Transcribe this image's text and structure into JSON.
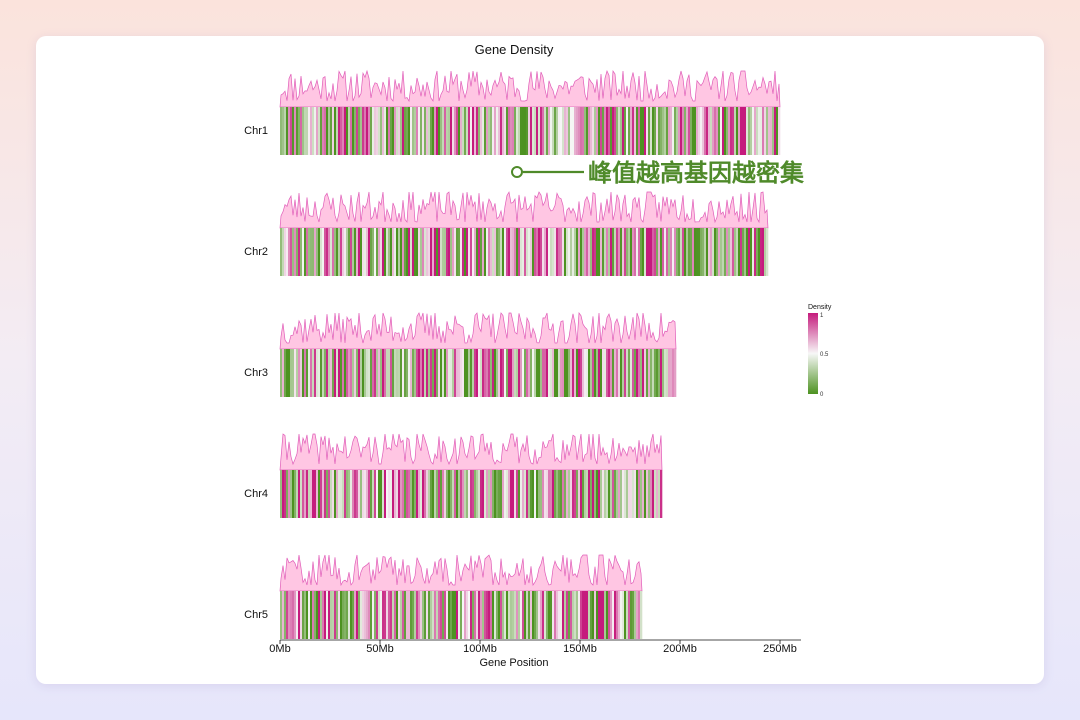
{
  "chart_data": {
    "type": "heatmap",
    "title": "Gene Density",
    "xlabel": "Gene Position",
    "ylabel": "",
    "x_unit": "Mb",
    "xlim": [
      0,
      250
    ],
    "x_ticks": [
      0,
      50,
      100,
      150,
      200,
      250
    ],
    "x_tick_labels": [
      "0Mb",
      "50Mb",
      "100Mb",
      "150Mb",
      "200Mb",
      "250Mb"
    ],
    "bin_size_mb": 1,
    "value_range": [
      0,
      1
    ],
    "chromosomes": [
      {
        "name": "Chr1",
        "length_mb": 250,
        "seed": 11
      },
      {
        "name": "Chr2",
        "length_mb": 244,
        "seed": 23
      },
      {
        "name": "Chr3",
        "length_mb": 198,
        "seed": 37
      },
      {
        "name": "Chr4",
        "length_mb": 191,
        "seed": 41
      },
      {
        "name": "Chr5",
        "length_mb": 181,
        "seed": 59
      }
    ],
    "colorscale": {
      "low": "#4d9221",
      "mid": "#f7f7f7",
      "high": "#c51b7d"
    },
    "area_fill": "#ffc6e3",
    "area_line": "#e05cb8",
    "legend": {
      "title": "Density",
      "ticks": [
        "1",
        "0.5",
        "0"
      ],
      "position": "right"
    },
    "annotation": {
      "text": "峰值越高基因越密集",
      "color": "#4f8a2a"
    }
  }
}
